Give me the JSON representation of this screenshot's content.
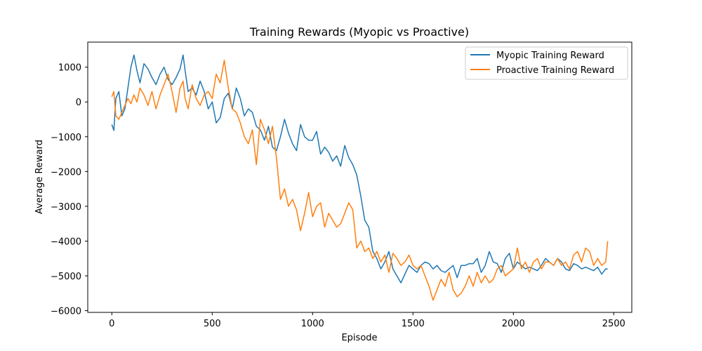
{
  "chart_data": {
    "type": "line",
    "title": "Training Rewards (Myopic vs Proactive)",
    "xlabel": "Episode",
    "ylabel": "Average Reward",
    "xlim": [
      -120,
      2590
    ],
    "ylim": [
      -6050,
      1720
    ],
    "xticks": [
      0,
      500,
      1000,
      1500,
      2000,
      2500
    ],
    "yticks": [
      -6000,
      -5000,
      -4000,
      -3000,
      -2000,
      -1000,
      0,
      1000
    ],
    "grid": false,
    "legend": "top-right",
    "series": [
      {
        "name": "Myopic Training Reward",
        "color": "#1f77b4",
        "x": [
          0,
          10,
          20,
          35,
          50,
          65,
          80,
          95,
          110,
          125,
          140,
          160,
          180,
          200,
          220,
          240,
          260,
          280,
          300,
          320,
          340,
          355,
          365,
          380,
          400,
          420,
          440,
          460,
          480,
          500,
          520,
          540,
          560,
          580,
          600,
          620,
          640,
          660,
          680,
          700,
          720,
          740,
          760,
          780,
          800,
          820,
          840,
          860,
          880,
          900,
          920,
          940,
          960,
          980,
          1000,
          1020,
          1040,
          1060,
          1080,
          1100,
          1120,
          1140,
          1160,
          1180,
          1200,
          1220,
          1240,
          1260,
          1280,
          1300,
          1320,
          1340,
          1360,
          1380,
          1400,
          1420,
          1440,
          1460,
          1480,
          1500,
          1520,
          1540,
          1560,
          1580,
          1600,
          1620,
          1640,
          1660,
          1680,
          1700,
          1720,
          1740,
          1760,
          1780,
          1800,
          1820,
          1840,
          1860,
          1880,
          1900,
          1920,
          1940,
          1960,
          1980,
          2000,
          2020,
          2040,
          2060,
          2080,
          2100,
          2120,
          2140,
          2160,
          2180,
          2200,
          2220,
          2240,
          2260,
          2280,
          2300,
          2320,
          2340,
          2360,
          2380,
          2400,
          2420,
          2440,
          2460,
          2470
        ],
        "y": [
          -650,
          -820,
          100,
          300,
          -400,
          -200,
          400,
          1000,
          1350,
          900,
          550,
          1100,
          950,
          700,
          500,
          800,
          1000,
          650,
          500,
          700,
          950,
          1350,
          900,
          300,
          400,
          200,
          600,
          300,
          -200,
          0,
          -600,
          -450,
          100,
          250,
          -200,
          400,
          100,
          -400,
          -200,
          -300,
          -700,
          -800,
          -1100,
          -700,
          -1300,
          -1400,
          -1000,
          -500,
          -900,
          -1200,
          -1400,
          -650,
          -1000,
          -1100,
          -1100,
          -850,
          -1500,
          -1300,
          -1450,
          -1700,
          -1550,
          -1850,
          -1250,
          -1600,
          -1800,
          -2100,
          -2700,
          -3400,
          -3600,
          -4300,
          -4500,
          -4800,
          -4600,
          -4300,
          -4800,
          -5000,
          -5200,
          -4950,
          -4700,
          -4800,
          -4900,
          -4700,
          -4600,
          -4650,
          -4800,
          -4700,
          -4850,
          -4900,
          -4800,
          -4700,
          -5050,
          -4700,
          -4700,
          -4650,
          -4650,
          -4500,
          -4900,
          -4700,
          -4300,
          -4600,
          -4650,
          -4900,
          -4500,
          -4350,
          -4800,
          -4600,
          -4700,
          -4800,
          -4750,
          -4800,
          -4850,
          -4700,
          -4500,
          -4600,
          -4700,
          -4500,
          -4600,
          -4800,
          -4850,
          -4650,
          -4700,
          -4800,
          -4750,
          -4800,
          -4850,
          -4750,
          -4950,
          -4800,
          -4800
        ],
        "x2": [],
        "y2": []
      },
      {
        "name": "Proactive Training Reward",
        "color": "#ff7f0e",
        "x": [
          0,
          10,
          20,
          35,
          50,
          65,
          80,
          95,
          110,
          125,
          140,
          160,
          180,
          200,
          220,
          240,
          260,
          280,
          300,
          320,
          340,
          355,
          365,
          380,
          400,
          420,
          440,
          460,
          480,
          500,
          520,
          540,
          560,
          580,
          600,
          620,
          640,
          660,
          680,
          700,
          720,
          740,
          760,
          780,
          800,
          820,
          840,
          860,
          880,
          900,
          920,
          940,
          960,
          980,
          1000,
          1020,
          1040,
          1060,
          1080,
          1100,
          1120,
          1140,
          1160,
          1180,
          1200,
          1220,
          1240,
          1260,
          1280,
          1300,
          1320,
          1340,
          1360,
          1380,
          1400,
          1420,
          1440,
          1460,
          1480,
          1500,
          1520,
          1540,
          1560,
          1580,
          1600,
          1620,
          1640,
          1660,
          1680,
          1700,
          1720,
          1740,
          1760,
          1780,
          1800,
          1820,
          1840,
          1860,
          1880,
          1900,
          1920,
          1940,
          1960,
          1980,
          2000,
          2020,
          2040,
          2060,
          2080,
          2100,
          2120,
          2140,
          2160,
          2180,
          2200,
          2220,
          2240,
          2260,
          2280,
          2300,
          2320,
          2340,
          2360,
          2380,
          2400,
          2420,
          2440,
          2460,
          2470
        ],
        "y": [
          150,
          300,
          -400,
          -500,
          -300,
          -100,
          100,
          -50,
          200,
          0,
          400,
          200,
          -100,
          300,
          -200,
          200,
          500,
          800,
          300,
          -300,
          400,
          600,
          100,
          -200,
          500,
          100,
          -100,
          200,
          300,
          100,
          800,
          550,
          1200,
          400,
          -200,
          -300,
          -600,
          -1000,
          -1200,
          -800,
          -1800,
          -500,
          -800,
          -1200,
          -700,
          -1600,
          -2800,
          -2500,
          -3000,
          -2800,
          -3100,
          -3700,
          -3200,
          -2600,
          -3300,
          -3000,
          -2900,
          -3600,
          -3200,
          -3400,
          -3600,
          -3500,
          -3200,
          -2900,
          -3100,
          -4200,
          -4000,
          -4300,
          -4200,
          -4500,
          -4300,
          -4600,
          -4400,
          -4900,
          -4350,
          -4500,
          -4700,
          -4600,
          -4400,
          -4700,
          -4800,
          -4700,
          -5000,
          -5300,
          -5700,
          -5400,
          -5100,
          -5300,
          -4900,
          -5400,
          -5600,
          -5500,
          -5300,
          -5000,
          -5300,
          -4900,
          -5200,
          -5000,
          -5200,
          -5100,
          -4800,
          -4700,
          -5000,
          -4900,
          -4800,
          -4200,
          -4800,
          -4600,
          -4900,
          -4600,
          -4500,
          -4800,
          -4600,
          -4600,
          -4700,
          -4500,
          -4700,
          -4600,
          -4800,
          -4400,
          -4300,
          -4600,
          -4200,
          -4300,
          -4700,
          -4500,
          -4700,
          -4600,
          -4000
        ]
      }
    ]
  }
}
